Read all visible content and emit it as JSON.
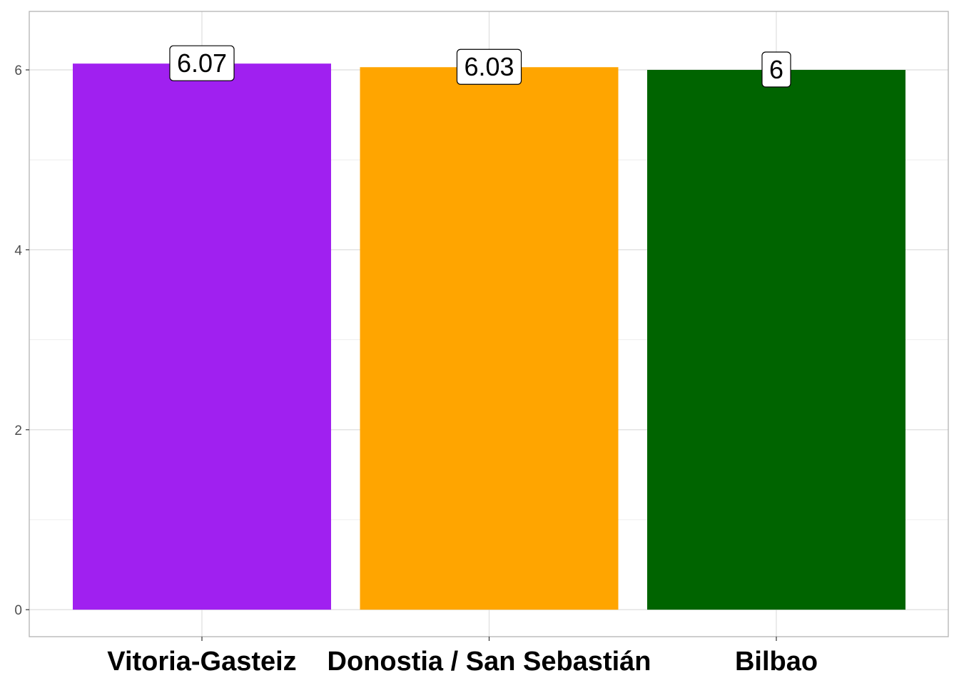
{
  "chart_data": {
    "type": "bar",
    "title": "",
    "xlabel": "",
    "ylabel": "",
    "categories": [
      "Vitoria-Gasteiz",
      "Donostia / San Sebastián",
      "Bilbao"
    ],
    "values": [
      6.07,
      6.03,
      6.0
    ],
    "data_labels": [
      "6.07",
      "6.03",
      "6"
    ],
    "colors": [
      "#A020F0",
      "#FFA500",
      "#006400"
    ],
    "ylim": [
      -0.3,
      6.65
    ],
    "yticks": [
      0,
      2,
      4,
      6
    ],
    "ytick_labels": [
      "0",
      "2",
      "4",
      "6"
    ],
    "grid": true,
    "legend": "none"
  }
}
